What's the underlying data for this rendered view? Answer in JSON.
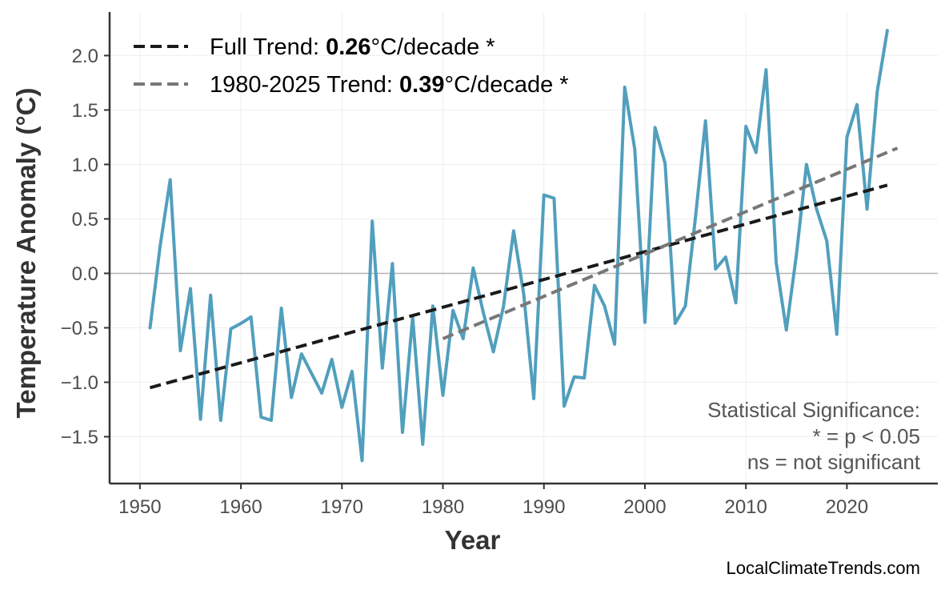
{
  "chart_data": {
    "type": "line",
    "xlabel": "Year",
    "ylabel": "Temperature Anomaly (°C)",
    "xlim": [
      1947,
      2029
    ],
    "ylim": [
      -1.93,
      2.4
    ],
    "xticks": [
      1950,
      1960,
      1970,
      1980,
      1990,
      2000,
      2010,
      2020
    ],
    "yticks": [
      -1.5,
      -1.0,
      -0.5,
      0.0,
      0.5,
      1.0,
      1.5,
      2.0
    ],
    "ytick_labels": [
      "−1.5",
      "−1.0",
      "−0.5",
      "0.0",
      "0.5",
      "1.0",
      "1.5",
      "2.0"
    ],
    "grid": true,
    "zero_line": true,
    "series": [
      {
        "color": "#519fbd",
        "x": [
          1951,
          1952,
          1953,
          1954,
          1955,
          1956,
          1957,
          1958,
          1959,
          1960,
          1961,
          1962,
          1963,
          1964,
          1965,
          1966,
          1967,
          1968,
          1969,
          1970,
          1971,
          1972,
          1973,
          1974,
          1975,
          1976,
          1977,
          1978,
          1979,
          1980,
          1981,
          1982,
          1983,
          1984,
          1985,
          1986,
          1987,
          1988,
          1989,
          1990,
          1991,
          1992,
          1993,
          1994,
          1995,
          1996,
          1997,
          1998,
          1999,
          2000,
          2001,
          2002,
          2003,
          2004,
          2005,
          2006,
          2007,
          2008,
          2009,
          2010,
          2011,
          2012,
          2013,
          2014,
          2015,
          2016,
          2017,
          2018,
          2019,
          2020,
          2021,
          2022,
          2023,
          2024
        ],
        "y": [
          -0.5,
          0.25,
          0.86,
          -0.71,
          -0.14,
          -1.34,
          -0.2,
          -1.35,
          -0.51,
          -0.46,
          -0.4,
          -1.32,
          -1.35,
          -0.32,
          -1.14,
          -0.74,
          -0.92,
          -1.1,
          -0.79,
          -1.23,
          -0.9,
          -1.72,
          0.48,
          -0.87,
          0.09,
          -1.46,
          -0.4,
          -1.57,
          -0.3,
          -1.12,
          -0.34,
          -0.6,
          0.05,
          -0.36,
          -0.72,
          -0.3,
          0.39,
          -0.19,
          -1.15,
          0.72,
          0.69,
          -1.22,
          -0.95,
          -0.96,
          -0.11,
          -0.3,
          -0.65,
          1.71,
          1.14,
          -0.45,
          1.34,
          1.01,
          -0.46,
          -0.3,
          0.51,
          1.4,
          0.04,
          0.15,
          -0.27,
          1.35,
          1.11,
          1.87,
          0.1,
          -0.52,
          0.17,
          1.0,
          0.59,
          0.3,
          -0.56,
          1.25,
          1.55,
          0.59,
          1.67,
          2.23
        ]
      }
    ],
    "trend_lines": [
      {
        "label_prefix": "Full Trend: ",
        "value": "0.26",
        "label_suffix": "°C/decade *",
        "color": "#1a1a1a",
        "x": [
          1951,
          2024
        ],
        "y": [
          -1.05,
          0.81
        ]
      },
      {
        "label_prefix": "1980-2025 Trend: ",
        "value": "0.39",
        "label_suffix": "°C/decade *",
        "color": "#777777",
        "x": [
          1980,
          2025
        ],
        "y": [
          -0.6,
          1.15
        ]
      }
    ],
    "legend_position": "top-left",
    "significance_note": [
      "Statistical Significance:",
      "* = p < 0.05",
      "ns = not significant"
    ],
    "source": "LocalClimateTrends.com"
  }
}
